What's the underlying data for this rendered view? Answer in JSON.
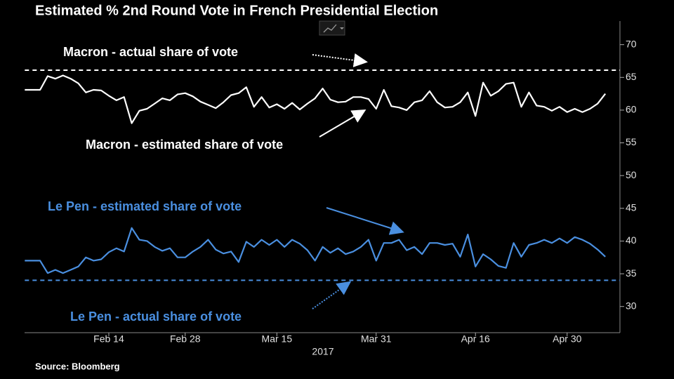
{
  "chart_data": {
    "type": "line",
    "title": "Estimated % 2nd Round Vote in French Presidential Election",
    "source": "Source: Bloomberg",
    "xlabel": "2017",
    "categories": [
      null,
      null,
      null,
      null,
      null,
      null,
      null,
      null,
      null,
      null,
      null,
      "Feb 14",
      null,
      null,
      null,
      null,
      null,
      null,
      null,
      null,
      null,
      "Feb 28",
      null,
      null,
      null,
      null,
      null,
      null,
      null,
      null,
      null,
      null,
      null,
      "Mar 15",
      null,
      null,
      null,
      null,
      null,
      null,
      null,
      null,
      null,
      null,
      null,
      null,
      "Mar 31",
      null,
      null,
      null,
      null,
      null,
      null,
      null,
      null,
      null,
      null,
      null,
      null,
      "Apr 16",
      null,
      null,
      null,
      null,
      null,
      null,
      null,
      null,
      null,
      null,
      null,
      "Apr 30",
      null,
      null,
      null,
      null,
      null
    ],
    "series": [
      {
        "name": "Macron - estimated share of vote",
        "color": "#ffffff",
        "values": [
          63.1,
          63.1,
          63.1,
          65.2,
          64.8,
          65.3,
          64.8,
          64.1,
          62.7,
          63.1,
          63.0,
          62.2,
          61.5,
          62.0,
          58.0,
          59.9,
          60.2,
          61.0,
          61.8,
          61.5,
          62.4,
          62.6,
          62.1,
          61.3,
          60.8,
          60.3,
          61.2,
          62.3,
          62.6,
          63.5,
          60.5,
          62.0,
          60.4,
          60.9,
          60.2,
          61.1,
          60.1,
          61.0,
          61.8,
          63.3,
          61.6,
          61.2,
          61.3,
          62.0,
          62.0,
          61.7,
          60.2,
          63.1,
          60.6,
          60.4,
          60.0,
          61.2,
          61.5,
          62.9,
          61.2,
          60.4,
          60.5,
          61.2,
          62.7,
          59.1,
          64.2,
          62.2,
          62.9,
          64.0,
          64.2,
          60.5,
          62.7,
          60.7,
          60.5,
          59.9,
          60.5,
          59.7,
          60.2,
          59.7,
          60.2,
          61.0,
          62.5
        ]
      },
      {
        "name": "Le Pen - estimated share of vote",
        "color": "#4a8fe0",
        "values": [
          37.0,
          37.0,
          37.0,
          35.1,
          35.6,
          35.1,
          35.6,
          36.1,
          37.5,
          37.0,
          37.2,
          38.3,
          38.9,
          38.4,
          42.0,
          40.2,
          40.0,
          39.1,
          38.5,
          38.9,
          37.5,
          37.5,
          38.4,
          39.1,
          40.2,
          38.7,
          38.1,
          38.4,
          36.8,
          39.9,
          39.1,
          40.2,
          39.4,
          40.2,
          39.1,
          40.2,
          39.6,
          38.6,
          37.0,
          39.1,
          38.2,
          38.9,
          38.0,
          38.4,
          39.1,
          40.2,
          37.0,
          39.7,
          39.7,
          40.2,
          38.6,
          39.1,
          38.0,
          39.7,
          39.7,
          39.4,
          39.6,
          37.6,
          41.0,
          36.1,
          38.0,
          37.2,
          36.2,
          35.9,
          39.7,
          37.6,
          39.4,
          39.7,
          40.2,
          39.7,
          40.4,
          39.7,
          40.6,
          40.2,
          39.6,
          38.7,
          37.6
        ]
      }
    ],
    "reference_lines": [
      {
        "label": "Macron - actual share of vote",
        "value": 66.1,
        "color": "#ffffff"
      },
      {
        "label": "Le Pen - actual share of vote",
        "value": 34.0,
        "color": "#4a8fe0"
      }
    ],
    "ylim": [
      26,
      73.5
    ],
    "yticks": [
      30,
      35,
      40,
      45,
      50,
      55,
      60,
      65,
      70
    ],
    "axis_side": "right",
    "grid": false
  }
}
